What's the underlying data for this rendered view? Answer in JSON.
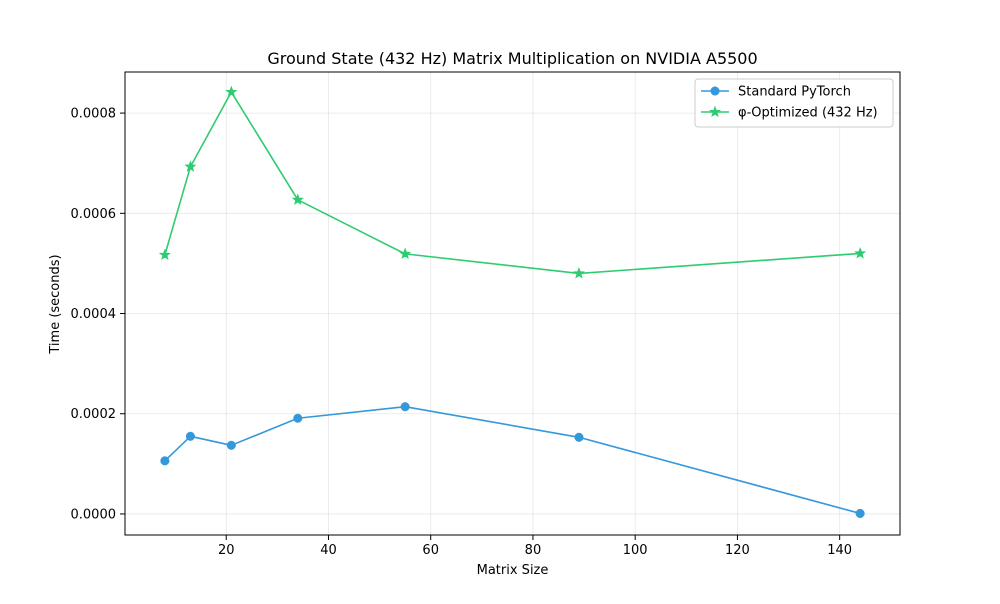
{
  "chart_data": {
    "type": "line",
    "title": "Ground State (432 Hz) Matrix Multiplication on NVIDIA A5500",
    "xlabel": "Matrix Size",
    "ylabel": "Time (seconds)",
    "xlim": [
      0.2,
      151.8
    ],
    "ylim": [
      -4.2e-05,
      0.000882
    ],
    "xticks": [
      20,
      40,
      60,
      80,
      100,
      120,
      140
    ],
    "xtick_labels": [
      "20",
      "40",
      "60",
      "80",
      "100",
      "120",
      "140"
    ],
    "yticks": [
      0.0,
      0.0002,
      0.0004,
      0.0006,
      0.0008
    ],
    "ytick_labels": [
      "0.0000",
      "0.0002",
      "0.0004",
      "0.0006",
      "0.0008"
    ],
    "grid": true,
    "legend_position": "upper right",
    "x": [
      8,
      13,
      21,
      34,
      55,
      89,
      144
    ],
    "series": [
      {
        "name": "Standard PyTorch",
        "color": "#3498db",
        "marker": "circle",
        "values": [
          0.000106,
          0.000155,
          0.000137,
          0.000191,
          0.000214,
          0.000153,
          1e-06
        ]
      },
      {
        "name": "φ-Optimized (432 Hz)",
        "color": "#2ecc71",
        "marker": "star",
        "values": [
          0.000517,
          0.000693,
          0.000842,
          0.000627,
          0.000519,
          0.00048,
          0.00052
        ]
      }
    ]
  }
}
